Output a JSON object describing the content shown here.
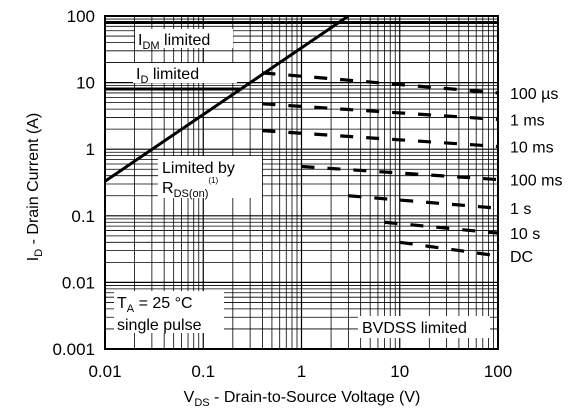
{
  "chart_data": {
    "type": "line",
    "xscale": "log",
    "yscale": "log",
    "xlim": [
      0.01,
      100
    ],
    "ylim": [
      0.001,
      100
    ],
    "grid": true,
    "xlabel": {
      "main": "V",
      "sub": "DS",
      "rest": " - Drain-to-Source Voltage (V)"
    },
    "ylabel": {
      "main": "I",
      "sub": "D",
      "rest": " - Drain Current (A)"
    },
    "x_ticks": [
      {
        "value": 0.01,
        "label": "0.01"
      },
      {
        "value": 0.1,
        "label": "0.1"
      },
      {
        "value": 1,
        "label": "1"
      },
      {
        "value": 10,
        "label": "10"
      },
      {
        "value": 100,
        "label": "100"
      }
    ],
    "y_ticks": [
      {
        "value": 0.001,
        "label": "0.001"
      },
      {
        "value": 0.01,
        "label": "0.01"
      },
      {
        "value": 0.1,
        "label": "0.1"
      },
      {
        "value": 1,
        "label": "1"
      },
      {
        "value": 10,
        "label": "10"
      },
      {
        "value": 100,
        "label": "100"
      }
    ],
    "boundaries": {
      "rds_on": {
        "x": [
          0.01,
          3
        ],
        "y": [
          0.33,
          100
        ]
      },
      "id_limited": {
        "y": 8,
        "x": [
          0.01,
          0.25
        ]
      },
      "idm_limited": {
        "y": 80,
        "x": [
          0.01,
          100
        ]
      }
    },
    "series": [
      {
        "name": "100 µs",
        "style": "dashed",
        "x": [
          0.4,
          100
        ],
        "y": [
          14,
          7
        ]
      },
      {
        "name": "1 ms",
        "style": "dashed",
        "x": [
          0.4,
          100
        ],
        "y": [
          4.8,
          2.8
        ]
      },
      {
        "name": "10 ms",
        "style": "dashed",
        "x": [
          0.4,
          100
        ],
        "y": [
          1.9,
          1.1
        ]
      },
      {
        "name": "100 ms",
        "style": "dashed",
        "x": [
          1,
          100
        ],
        "y": [
          0.55,
          0.35
        ]
      },
      {
        "name": "1 s",
        "style": "dashed",
        "x": [
          3,
          100
        ],
        "y": [
          0.2,
          0.13
        ]
      },
      {
        "name": "10 s",
        "style": "dashed",
        "x": [
          7,
          100
        ],
        "y": [
          0.08,
          0.055
        ]
      },
      {
        "name": "DC",
        "style": "dashed",
        "x": [
          10,
          100
        ],
        "y": [
          0.04,
          0.025
        ]
      }
    ],
    "annotations": {
      "idm": {
        "main": "I",
        "sub": "DM",
        "rest": " limited"
      },
      "id": {
        "main": "I",
        "sub": "D",
        "rest": " limited"
      },
      "rds_line1": "Limited by",
      "rds_line2": {
        "main": "R",
        "sub": "DS(on)",
        "sup": "(1)"
      },
      "ta_line1": {
        "main": "T",
        "sub": "A",
        "rest": " = 25 °C"
      },
      "ta_line2": "single pulse",
      "bvdss": "BVDSS limited"
    }
  }
}
